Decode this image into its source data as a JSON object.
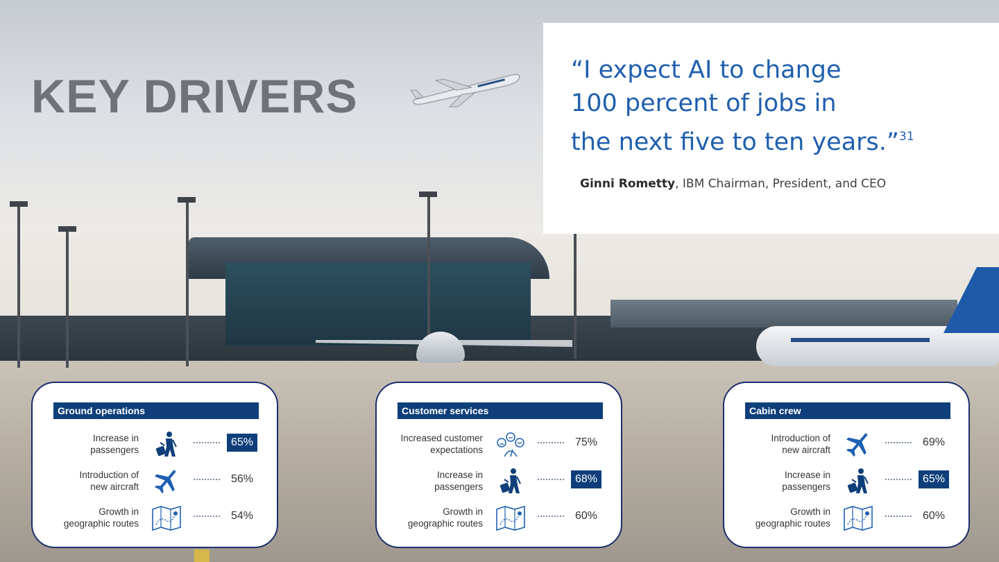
{
  "slide": {
    "title": "KEY DRIVERS"
  },
  "quote": {
    "line1": "“I expect AI to change",
    "line2": "100 percent of jobs in",
    "line3": "the next five to ten years.”",
    "footnote": "31",
    "author": "Ginni Rometty",
    "role": ", IBM Chairman, President, and CEO"
  },
  "colors": {
    "accent_blue": "#1f5fae",
    "header_navy": "#0f3f7a",
    "card_border": "#1b2d6b"
  },
  "cards": [
    {
      "title": "Ground operations",
      "rows": [
        {
          "label_1": "Increase in",
          "label_2": "passengers",
          "icon": "traveler-luggage-icon",
          "value": "65%",
          "highlight": true
        },
        {
          "label_1": "Introduction of",
          "label_2": "new aircraft",
          "icon": "airplane-icon",
          "value": "56%",
          "highlight": false
        },
        {
          "label_1": "Growth in",
          "label_2": "geographic routes",
          "icon": "route-map-icon",
          "value": "54%",
          "highlight": false
        }
      ]
    },
    {
      "title": "Customer services",
      "rows": [
        {
          "label_1": "Increased customer",
          "label_2": "expectations",
          "icon": "customer-satisfaction-icon",
          "value": "75%",
          "highlight": false
        },
        {
          "label_1": "Increase in",
          "label_2": "passengers",
          "icon": "traveler-luggage-icon",
          "value": "68%",
          "highlight": true
        },
        {
          "label_1": "Growth in",
          "label_2": "geographic routes",
          "icon": "route-map-icon",
          "value": "60%",
          "highlight": false
        }
      ]
    },
    {
      "title": "Cabin crew",
      "rows": [
        {
          "label_1": "Introduction of",
          "label_2": "new aircraft",
          "icon": "airplane-icon",
          "value": "69%",
          "highlight": false
        },
        {
          "label_1": "Increase in",
          "label_2": "passengers",
          "icon": "traveler-luggage-icon",
          "value": "65%",
          "highlight": true
        },
        {
          "label_1": "Growth in",
          "label_2": "geographic routes",
          "icon": "route-map-icon",
          "value": "60%",
          "highlight": false
        }
      ]
    }
  ]
}
